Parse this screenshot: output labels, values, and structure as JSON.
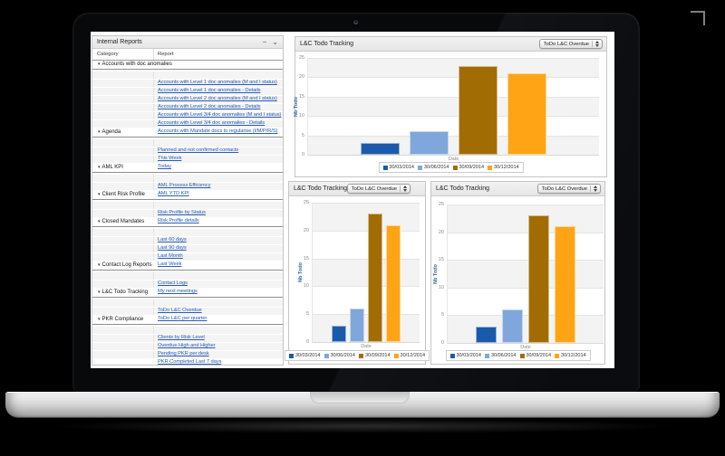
{
  "reports_panel": {
    "title": "Internal Reports",
    "minimize_icon": "−",
    "collapse_icon": "⌄",
    "group_triangle": "▾",
    "columns": [
      "Category",
      "Report"
    ],
    "groups": [
      {
        "category": "Accounts with doc anomalies",
        "reports": [
          "Accounts with Level 1 doc anomalies (M and I status)",
          "Accounts with Level 1 doc anomalies - Details",
          "Accounts with Level 2 doc anomalies (M and I status)",
          "Accounts with Level 2 doc anomalies - Details",
          "Accounts with Level 3/4 doc anomalies (M and I status)",
          "Accounts with Level 3/4 doc anomalies - Details",
          "Accounts with Mandate docs to regularise (I/M/P/R/S)"
        ]
      },
      {
        "category": "Agenda",
        "reports": [
          "Planned and not confirmed contacts",
          "This Week",
          "Today"
        ]
      },
      {
        "category": "AML KPI",
        "reports": [
          "AML Process Efficiency",
          "AML YTD KPI"
        ]
      },
      {
        "category": "Client Risk Profile",
        "reports": [
          "Risk Profile by Status",
          "Risk Profile details"
        ]
      },
      {
        "category": "Closed Mandates",
        "reports": [
          "Last 60 days",
          "Last 90 days",
          "Last Month",
          "Last Week"
        ]
      },
      {
        "category": "Contact Log Reports",
        "reports": [
          "Contact Logs",
          "My next meetings"
        ]
      },
      {
        "category": "L&C Todo Tracking",
        "reports": [
          "ToDo L&C Overdue",
          "ToDo L&C per quarter"
        ]
      },
      {
        "category": "PKR Compliance",
        "reports": [
          "Clients by Risk Level",
          "Overdue High and Higher",
          "Pending PKR per desk",
          "PKR Completed Last 7 days"
        ]
      }
    ]
  },
  "chart_data": [
    {
      "type": "bar",
      "title": "L&C Todo Tracking",
      "selector_value": "ToDo L&C Overdue",
      "categories": [
        "30/03/2014",
        "30/06/2014",
        "30/09/2014",
        "30/12/2014"
      ],
      "values": [
        3,
        6,
        23,
        21
      ],
      "colors": [
        "#1b5aab",
        "#7fa7db",
        "#a26c05",
        "#ffa414"
      ],
      "xlabel": "Date",
      "ylabel": "Nb Todo",
      "ylim": [
        0,
        25
      ],
      "yticks": [
        25,
        20,
        15,
        10,
        5,
        0
      ],
      "legend_position": "bottom",
      "grid": "horizontal-bands"
    },
    {
      "type": "bar",
      "title": "L&C Todo Tracking",
      "selector_value": "ToDo L&C Overdue",
      "categories": [
        "30/03/2014",
        "30/06/2014",
        "30/09/2014",
        "30/12/2014"
      ],
      "values": [
        3,
        6,
        23,
        21
      ],
      "colors": [
        "#1b5aab",
        "#7fa7db",
        "#a26c05",
        "#ffa414"
      ],
      "xlabel": "Date",
      "ylabel": "Nb Todo",
      "ylim": [
        0,
        25
      ],
      "yticks": [
        25,
        20,
        15,
        10,
        5,
        0
      ],
      "legend_position": "bottom",
      "grid": "horizontal-bands"
    },
    {
      "type": "bar",
      "title": "L&C Todo Tracking",
      "selector_value": "ToDo L&C Overdue",
      "categories": [
        "30/03/2014",
        "30/06/2014",
        "30/09/2014",
        "30/12/2014"
      ],
      "values": [
        3,
        6,
        23,
        21
      ],
      "colors": [
        "#1b5aab",
        "#7fa7db",
        "#a26c05",
        "#ffa414"
      ],
      "xlabel": "Date",
      "ylabel": "Nb Todo",
      "ylim": [
        0,
        25
      ],
      "yticks": [
        25,
        20,
        15,
        10,
        5,
        0
      ],
      "legend_position": "bottom",
      "grid": "horizontal-bands"
    }
  ]
}
